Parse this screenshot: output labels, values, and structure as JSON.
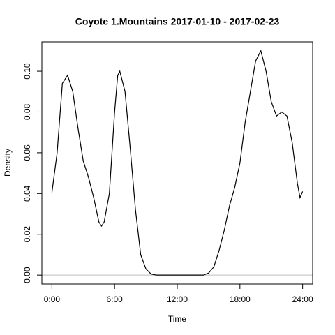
{
  "chart_data": {
    "type": "line",
    "title": "Coyote 1.Mountains 2017-01-10 - 2017-02-23",
    "xlabel": "Time",
    "ylabel": "Density",
    "x": [
      0,
      0.5,
      1,
      1.5,
      2,
      2.5,
      3,
      3.5,
      4,
      4.5,
      4.75,
      5,
      5.5,
      6,
      6.3,
      6.5,
      7,
      7.5,
      8,
      8.5,
      9,
      9.5,
      10,
      11,
      12,
      13,
      14,
      14.5,
      15,
      15.5,
      16,
      16.5,
      17,
      17.5,
      18,
      18.5,
      19,
      19.5,
      20,
      20.5,
      21,
      21.5,
      22,
      22.5,
      23,
      23.5,
      23.75,
      24
    ],
    "values": [
      0.0405,
      0.06,
      0.094,
      0.098,
      0.09,
      0.072,
      0.056,
      0.048,
      0.038,
      0.026,
      0.024,
      0.026,
      0.04,
      0.08,
      0.098,
      0.1,
      0.09,
      0.062,
      0.032,
      0.01,
      0.003,
      0.0005,
      0,
      0,
      0,
      0,
      0,
      0,
      0.001,
      0.004,
      0.012,
      0.022,
      0.034,
      0.043,
      0.055,
      0.075,
      0.09,
      0.105,
      0.11,
      0.1,
      0.085,
      0.078,
      0.08,
      0.078,
      0.065,
      0.045,
      0.038,
      0.041
    ],
    "color": "#000000",
    "xlim": [
      -0.96,
      24.96
    ],
    "xticks": [
      {
        "value": 0,
        "label": "0:00"
      },
      {
        "value": 6,
        "label": "6:00"
      },
      {
        "value": 12,
        "label": "12:00"
      },
      {
        "value": 18,
        "label": "18:00"
      },
      {
        "value": 24,
        "label": "24:00"
      }
    ],
    "ylim": [
      -0.0044,
      0.1144
    ],
    "yticks": [
      {
        "value": 0,
        "label": "0.00"
      },
      {
        "value": 0.02,
        "label": "0.02"
      },
      {
        "value": 0.04,
        "label": "0.04"
      },
      {
        "value": 0.06,
        "label": "0.06"
      },
      {
        "value": 0.08,
        "label": "0.08"
      },
      {
        "value": 0.1,
        "label": "0.10"
      }
    ]
  }
}
